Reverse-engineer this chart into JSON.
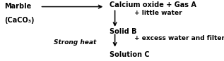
{
  "bg_color": "#ffffff",
  "marble_label": "Marble",
  "marble_formula": "(CaCO₃)",
  "strong_heat": "Strong heat",
  "line1_text": "Calcium oxide + Gas A",
  "little_water_text": "+ little water",
  "solid_b_text": "Solid B",
  "excess_water_text": "+ excess water and filter",
  "solution_c_text": "Solution C",
  "down_arrow": "↓",
  "fig_width": 3.17,
  "fig_height": 0.87,
  "dpi": 100
}
